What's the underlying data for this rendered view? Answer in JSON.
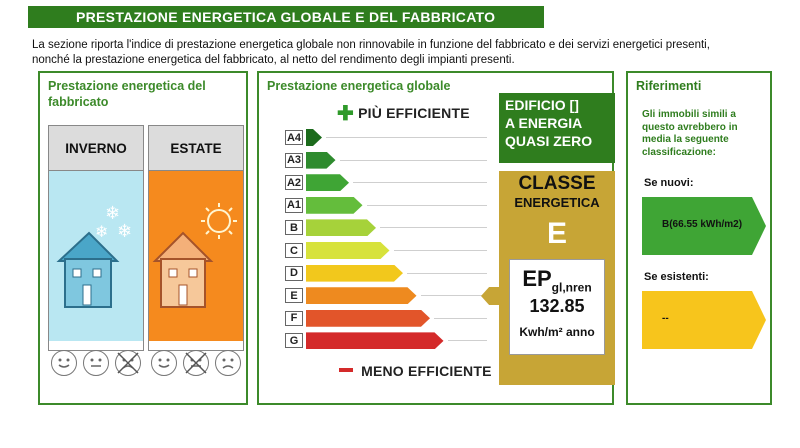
{
  "header": {
    "title": "PRESTAZIONE ENERGETICA GLOBALE E DEL FABBRICATO"
  },
  "intro": {
    "line1": "La sezione riporta l'indice di prestazione energetica globale non rinnovabile in funzione del fabbricato e dei servizi energetici presenti,",
    "line2": "nonché la prestazione energetica del fabbricato, al netto del rendimento degli impianti presenti."
  },
  "fabbricato": {
    "title_line1": "Prestazione energetica del",
    "title_line2": "fabbricato",
    "winter_label": "INVERNO",
    "summer_label": "ESTATE",
    "colors": {
      "winter": "#b9e7f2",
      "summer": "#f58a1e"
    }
  },
  "globale": {
    "title": "Prestazione energetica globale",
    "more_efficient": "PIÙ EFFICIENTE",
    "less_efficient": "MENO EFFICIENTE",
    "classes": [
      {
        "label": "A4",
        "color": "#1c6b1c"
      },
      {
        "label": "A3",
        "color": "#2e8b2e"
      },
      {
        "label": "A2",
        "color": "#3fa535"
      },
      {
        "label": "A1",
        "color": "#64bd3c"
      },
      {
        "label": "B",
        "color": "#a6d23a"
      },
      {
        "label": "C",
        "color": "#d7e23b"
      },
      {
        "label": "D",
        "color": "#f2c81c"
      },
      {
        "label": "E",
        "color": "#ee8a1f"
      },
      {
        "label": "F",
        "color": "#e2552a"
      },
      {
        "label": "G",
        "color": "#d42a2a"
      }
    ],
    "nzeb_line1": "EDIFICIO []",
    "nzeb_line2": "A ENERGIA",
    "nzeb_line3": "QUASI ZERO",
    "classe_title": "CLASSE",
    "classe_sub": "ENERGETICA",
    "classe_letter": "E",
    "ep_label": "EP",
    "ep_sub": "gl,nren",
    "ep_value": "132.85",
    "ep_unit": "Kwh/m² anno"
  },
  "riferimenti": {
    "title": "Riferimenti",
    "text": "Gli immobili simili a questo avrebbero in media la seguente classificazione:",
    "new_label": "Se nuovi:",
    "new_value": "B(66.55 kWh/m2)",
    "existing_label": "Se esistenti:",
    "existing_value": "--",
    "colors": {
      "new": "#3fa535",
      "existing": "#f7c51c"
    }
  }
}
